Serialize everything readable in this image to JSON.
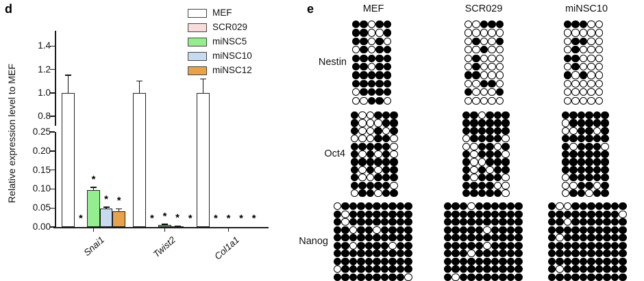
{
  "figure": {
    "panel_d_label": "d",
    "panel_e_label": "e",
    "sig_marker": "*"
  },
  "chart_data": [
    {
      "type": "bar",
      "panel": "d",
      "ylabel": "Relative expression level to MEF",
      "categories": [
        "Snai1",
        "Twist2",
        "Col1a1"
      ],
      "series": [
        {
          "name": "MEF",
          "color": "#ffffff",
          "values": [
            1.0,
            1.0,
            1.0
          ],
          "errors": [
            0.15,
            0.1,
            0.12
          ],
          "sig": [
            false,
            false,
            false
          ]
        },
        {
          "name": "SCR029",
          "color": "#f7dcdb",
          "values": [
            0.0,
            0.0,
            0.0
          ],
          "errors": [
            0,
            0,
            0
          ],
          "sig": [
            true,
            true,
            true
          ]
        },
        {
          "name": "miNSC5",
          "color": "#93ee8e",
          "values": [
            0.098,
            0.005,
            0.0
          ],
          "errors": [
            0.006,
            0.002,
            0
          ],
          "sig": [
            true,
            true,
            true
          ]
        },
        {
          "name": "miNSC10",
          "color": "#c7dbf0",
          "values": [
            0.049,
            0.002,
            0.0
          ],
          "errors": [
            0.003,
            0.001,
            0
          ],
          "sig": [
            true,
            true,
            true
          ]
        },
        {
          "name": "miNSC12",
          "color": "#e9a24c",
          "values": [
            0.042,
            0.0,
            0.0
          ],
          "errors": [
            0.006,
            0,
            0
          ],
          "sig": [
            true,
            true,
            true
          ]
        }
      ],
      "axis_break": {
        "upper_ticks": [
          "1.4",
          "1.2",
          "1.0",
          "0.8"
        ],
        "upper_tick_values": [
          1.4,
          1.2,
          1.0,
          0.8
        ],
        "upper_range": [
          0.72,
          1.52
        ],
        "lower_ticks": [
          "0.25",
          "0.20",
          "0.15",
          "0.10",
          "0.05",
          "0.00"
        ],
        "lower_tick_values": [
          0.25,
          0.2,
          0.15,
          0.1,
          0.05,
          0.0
        ],
        "lower_range": [
          0,
          0.25
        ]
      },
      "legend_position": "top-right-of-plot"
    },
    {
      "type": "heatmap",
      "panel": "e",
      "subtype": "bisulfite-methylation-dot-grid",
      "samples": [
        "MEF",
        "SCR029",
        "miNSC10"
      ],
      "genes": [
        {
          "name": "Nestin",
          "rows": 10,
          "cols": 5,
          "grids": {
            "MEF": [
              "11011",
              "11001",
              "11010",
              "01011",
              "11111",
              "11011",
              "11111",
              "11111",
              "01111",
              "00110"
            ],
            "SCR029": [
              "00111",
              "00000",
              "01001",
              "00100",
              "01000",
              "01000",
              "11000",
              "00110",
              "10001",
              "00000"
            ],
            "miNSC10": [
              "11100",
              "00000",
              "01100",
              "01000",
              "11000",
              "01000",
              "10100",
              "00000",
              "00000",
              "00000"
            ]
          }
        },
        {
          "name": "Oct4",
          "rows": 11,
          "cols": 6,
          "grids": {
            "MEF": [
              "100111",
              "100011",
              "100101",
              "000110",
              "111110",
              "101010",
              "111111",
              "101011",
              "100111",
              "111110",
              "011011"
            ],
            "SCR029": [
              "110111",
              "111111",
              "111111",
              "011110",
              "001101",
              "101110",
              "100111",
              "101011",
              "101110",
              "111100",
              "111110"
            ],
            "miNSC10": [
              "111111",
              "011111",
              "001101",
              "111111",
              "101110",
              "111111",
              "111111",
              "111111",
              "011111",
              "001101",
              "011011"
            ]
          }
        },
        {
          "name": "Nanog",
          "rows": 10,
          "cols": 10,
          "grids": {
            "MEF": [
              "0111111111",
              "1011111111",
              "1011111111",
              "1101101111",
              "1111111111",
              "1101111011",
              "1111111111",
              "1111111111",
              "0111111111",
              "1111111110"
            ],
            "SCR029": [
              "1110111111",
              "1111111111",
              "1111111111",
              "1111101111",
              "1111111111",
              "1111101111",
              "1110111111",
              "1111111111",
              "1111111111",
              "1011111111"
            ],
            "miNSC10": [
              "1001111111",
              "1111111110",
              "1101111111",
              "1111111111",
              "1011111111",
              "1111111111",
              "1111111111",
              "1111111111",
              "1011111111",
              "1111111111"
            ]
          }
        }
      ]
    }
  ]
}
